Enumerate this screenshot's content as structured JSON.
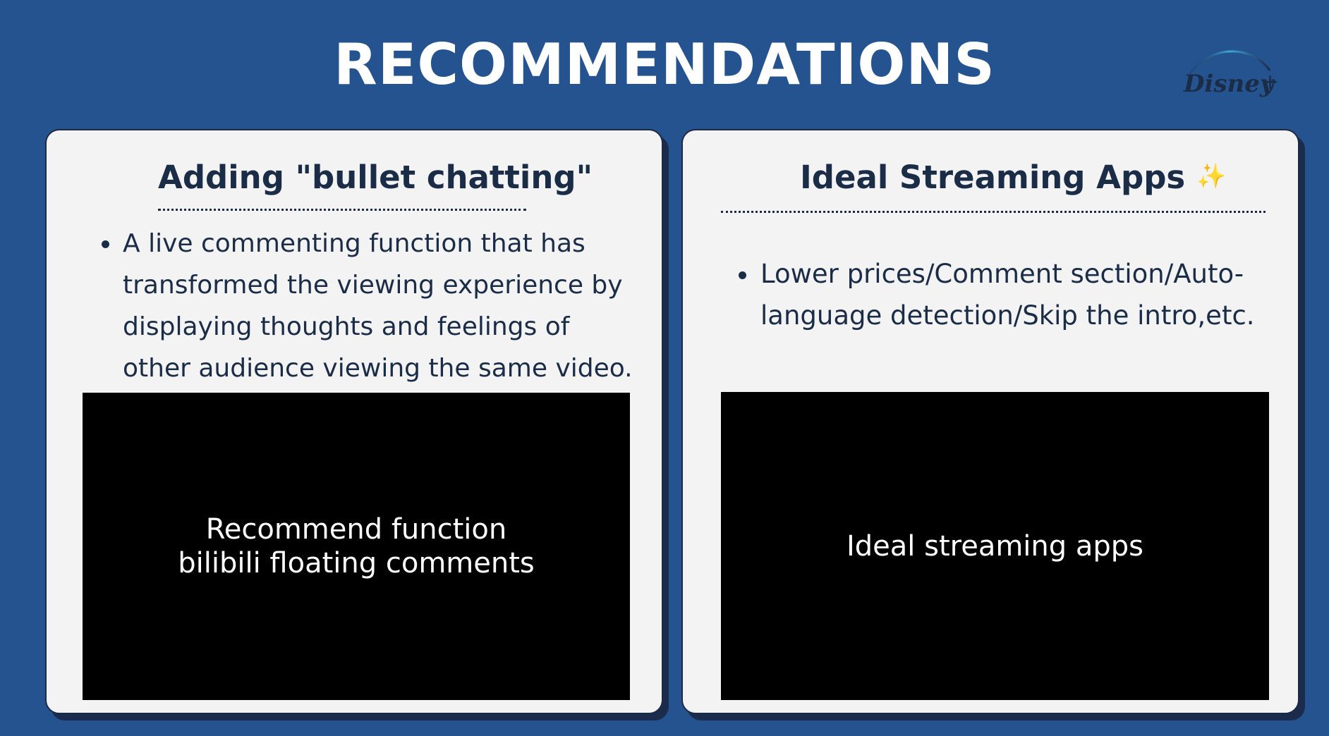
{
  "slide": {
    "title": "RECOMMENDATIONS",
    "logo_text": "Disney+"
  },
  "left_card": {
    "heading": "Adding \"bullet chatting\"",
    "bullets": [
      "A live commenting function that has transformed the viewing experience by displaying thoughts and feelings of other audience viewing the same video."
    ],
    "video": {
      "line1": "Recommend function",
      "line2": "bilibili floating comments"
    }
  },
  "right_card": {
    "heading": "Ideal Streaming Apps",
    "heading_icon": "sparkles-icon",
    "bullets": [
      "Lower prices/Comment section/Auto-language detection/Skip the intro,etc."
    ],
    "video": {
      "line1": "Ideal streaming apps"
    }
  },
  "colors": {
    "background": "#245390",
    "card": "#f3f3f3",
    "heading_text": "#1b2c47",
    "video_bg": "#000000"
  }
}
